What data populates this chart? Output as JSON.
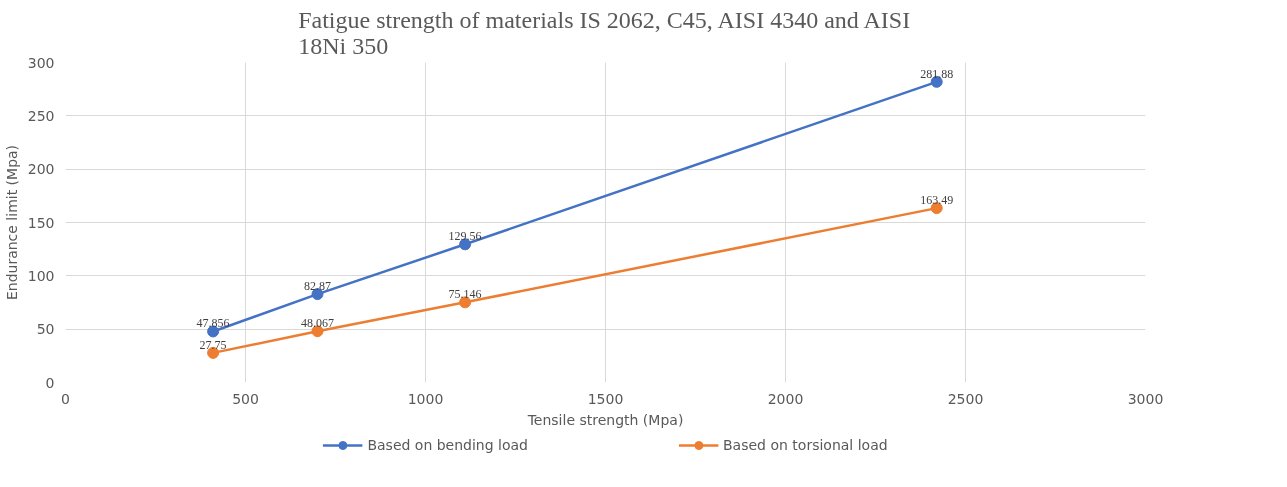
{
  "chart_data": {
    "type": "line",
    "title": "Fatigue strength of materials IS 2062, C45, AISI 4340 and AISI 18Ni 350",
    "xlabel": "Tensile strength (Mpa)",
    "ylabel": "Endurance limit (Mpa)",
    "x": [
      410,
      700,
      1110,
      2420
    ],
    "series": [
      {
        "name": "Based on bending load",
        "color": "#4472c4",
        "values": [
          47.856,
          82.87,
          129.56,
          281.88
        ]
      },
      {
        "name": "Based on torsional load",
        "color": "#ed7d31",
        "values": [
          27.75,
          48.067,
          75.146,
          163.49
        ]
      }
    ],
    "xlim": [
      0,
      3000
    ],
    "xticks": [
      0,
      500,
      1000,
      1500,
      2000,
      2500,
      3000
    ],
    "ylim": [
      0,
      300
    ],
    "yticks": [
      0,
      50,
      100,
      150,
      200,
      250,
      300
    ],
    "grid": true,
    "legend": "bottom",
    "marker": "circle",
    "line_style": "solid",
    "data_labels": true
  }
}
